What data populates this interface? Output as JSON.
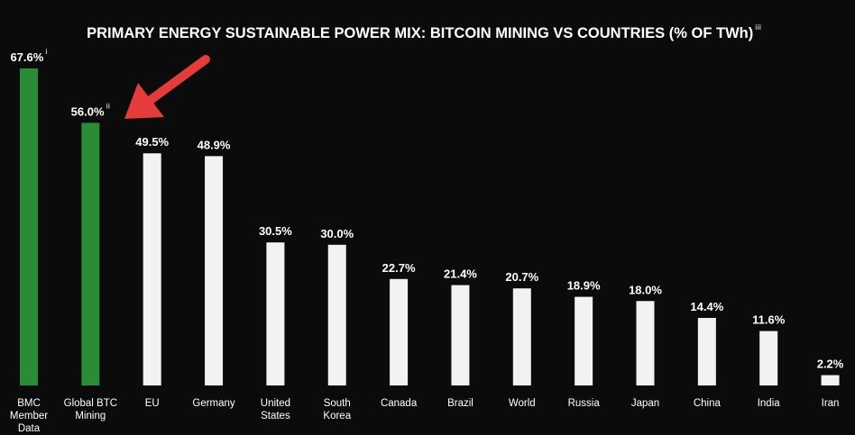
{
  "chart_data": {
    "type": "bar",
    "title": "PRIMARY ENERGY SUSTAINABLE POWER MIX: BITCOIN MINING VS COUNTRIES (% OF TWh)",
    "title_footnote": "iii",
    "categories": [
      "BMC Member Data",
      "Global BTC Mining",
      "EU",
      "Germany",
      "United States",
      "South Korea",
      "Canada",
      "Brazil",
      "World",
      "Russia",
      "Japan",
      "China",
      "India",
      "Iran"
    ],
    "values": [
      67.6,
      56.0,
      49.5,
      48.9,
      30.5,
      30.0,
      22.7,
      21.4,
      20.7,
      18.9,
      18.0,
      14.4,
      11.6,
      2.2
    ],
    "data_labels": [
      "67.6%",
      "56.0%",
      "49.5%",
      "48.9%",
      "30.5%",
      "30.0%",
      "22.7%",
      "21.4%",
      "20.7%",
      "18.9%",
      "18.0%",
      "14.4%",
      "11.6%",
      "2.2%"
    ],
    "label_footnotes": [
      "i",
      "ii",
      "",
      "",
      "",
      "",
      "",
      "",
      "",
      "",
      "",
      "",
      "",
      ""
    ],
    "highlight_count": 2,
    "ylim": [
      0,
      67.6
    ],
    "colors": {
      "highlight": "#2a8c36",
      "default": "#f2f2f2",
      "arrow": "#e63b3b",
      "background": "#0b0b0b",
      "text": "#ffffff"
    },
    "annotation": {
      "type": "arrow",
      "points_to": "Global BTC Mining"
    },
    "grid": false,
    "legend": "none"
  }
}
